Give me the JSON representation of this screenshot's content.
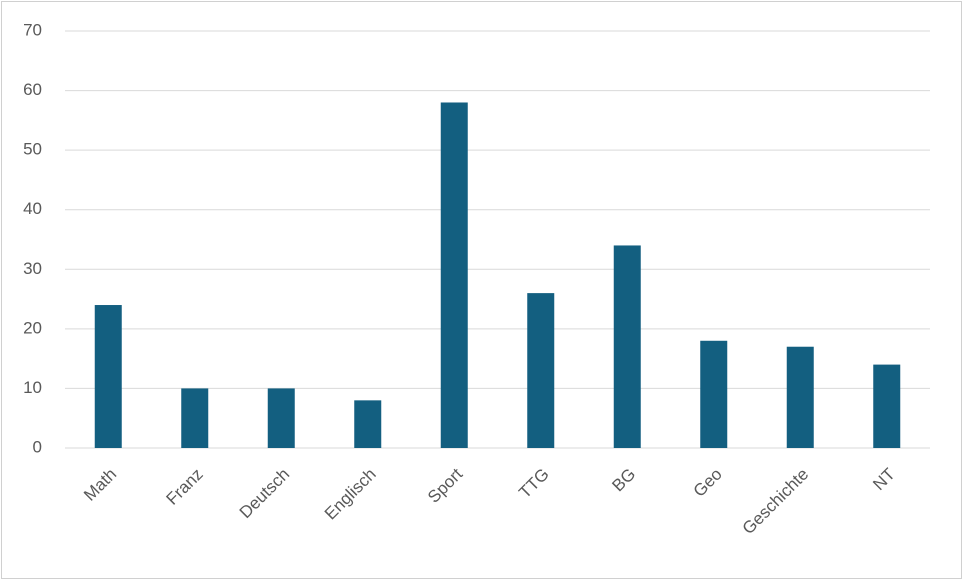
{
  "chart_data": {
    "type": "bar",
    "categories": [
      "Math",
      "Franz",
      "Deutsch",
      "Englisch",
      "Sport",
      "TTG",
      "BG",
      "Geo",
      "Geschichte",
      "NT"
    ],
    "values": [
      24,
      10,
      10,
      8,
      58,
      26,
      34,
      18,
      17,
      14
    ],
    "color": "#135f80",
    "ylim": [
      0,
      70
    ],
    "yticks": [
      0,
      10,
      20,
      30,
      40,
      50,
      60,
      70
    ],
    "grid": true
  }
}
